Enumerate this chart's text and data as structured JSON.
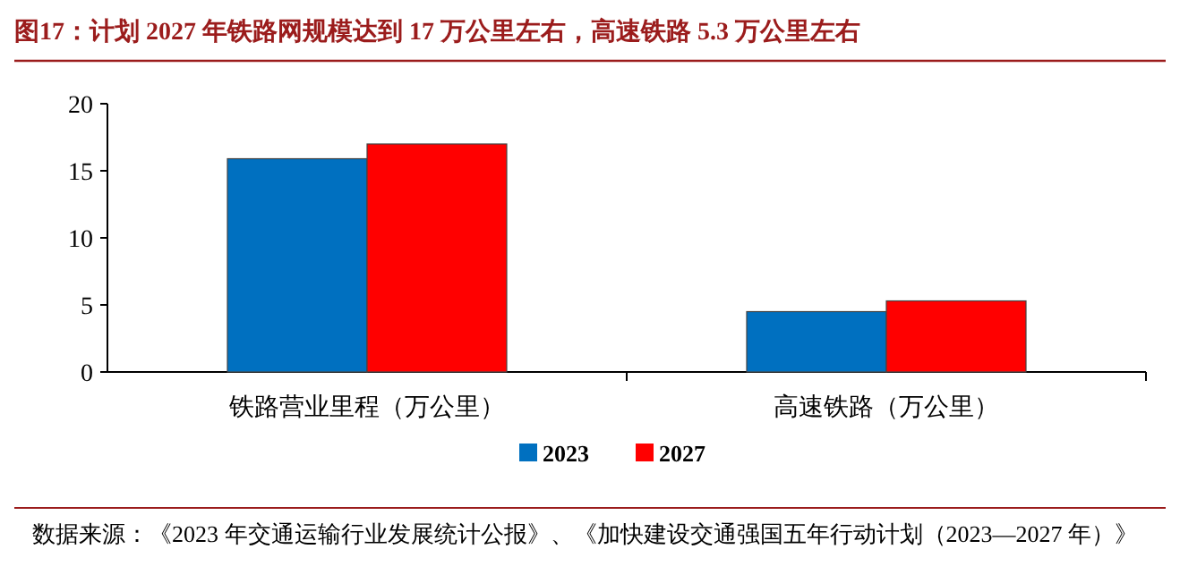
{
  "chart_data": {
    "type": "bar",
    "title": "图17：计划 2027 年铁路网规模达到 17 万公里左右，高速铁路 5.3 万公里左右",
    "categories": [
      "铁路营业里程（万公里）",
      "高速铁路（万公里）"
    ],
    "series": [
      {
        "name": "2023",
        "color": "#0070c0",
        "values": [
          15.9,
          4.5
        ]
      },
      {
        "name": "2027",
        "color": "#ff0000",
        "values": [
          17,
          5.3
        ]
      }
    ],
    "ylim": [
      0,
      20
    ],
    "yticks": [
      0,
      5,
      10,
      15,
      20
    ],
    "grid": false,
    "legend": "bottom",
    "annotations": [
      "数据来源：《2023 年交通运输行业发展统计公报》、《加快建设交通强国五年行动计划（2023—2027 年）》"
    ]
  }
}
